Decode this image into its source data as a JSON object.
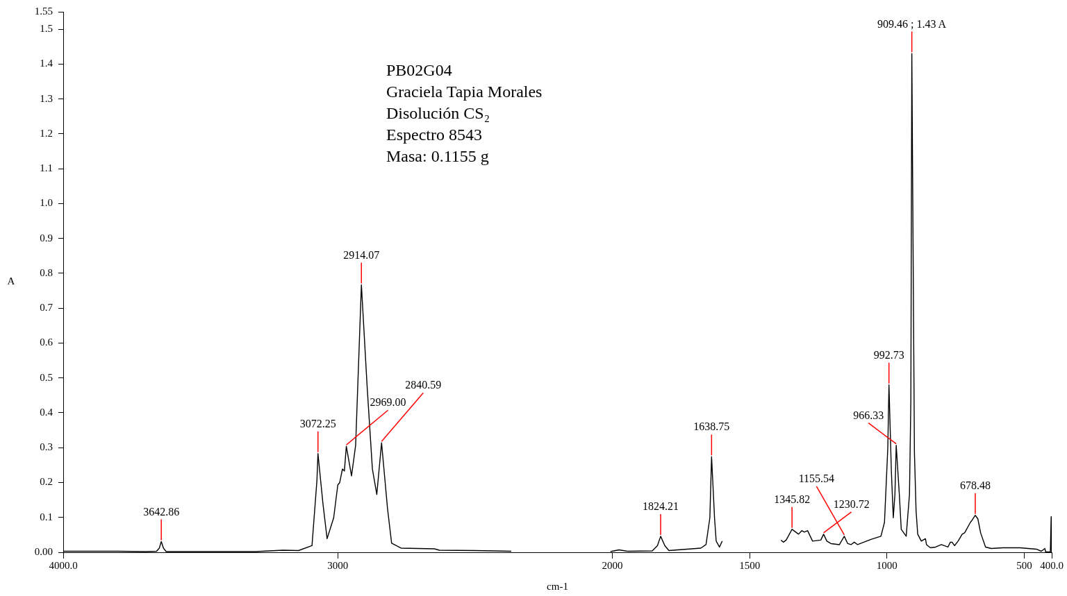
{
  "chart_data": {
    "type": "line",
    "xlabel": "cm-1",
    "ylabel": "A",
    "color": "#000000",
    "marker": "none",
    "grid": false,
    "legend": false,
    "xlim": [
      4000,
      400
    ],
    "xticks": [
      {
        "value": 4000,
        "label": "4000.0"
      },
      3000,
      2000,
      1500,
      1000,
      500,
      {
        "value": 400,
        "label": "400.0"
      }
    ],
    "ylim": [
      0,
      1.55
    ],
    "yticks": [
      {
        "value": 0,
        "label": "0.00"
      },
      0.1,
      0.2,
      0.3,
      0.4,
      0.5,
      0.6,
      0.7,
      0.8,
      0.9,
      {
        "value": 1,
        "label": "1.0"
      },
      1.1,
      1.2,
      1.3,
      1.4,
      1.5,
      1.55
    ],
    "x": [
      4000,
      3800,
      3700,
      3660,
      3650,
      3642.86,
      3635,
      3625,
      3500,
      3300,
      3250,
      3200,
      3143,
      3094,
      3076,
      3072.25,
      3054,
      3039,
      3015,
      3000,
      2993,
      2983,
      2976,
      2969,
      2950,
      2935,
      2914.07,
      2893,
      2874,
      2858,
      2840.59,
      2819,
      2804,
      2770,
      2648,
      2630,
      2500,
      2368,
      2360,
      2007,
      1976,
      1945,
      1855,
      1836,
      1824.21,
      1809,
      1794,
      1745,
      1678,
      1659,
      1645,
      1638.75,
      1628,
      1622,
      1610,
      1600,
      1500,
      1386,
      1377,
      1367,
      1345.82,
      1322,
      1310,
      1301,
      1289,
      1271,
      1241,
      1230.72,
      1219,
      1204,
      1173,
      1155.54,
      1143,
      1131,
      1119,
      1107,
      1058,
      1022,
      1009,
      997,
      992.73,
      984,
      977,
      971,
      966.33,
      955,
      948,
      930,
      918,
      913,
      909.46,
      900,
      894,
      888,
      875,
      860,
      856,
      842,
      823,
      802,
      778,
      769,
      763,
      754,
      741,
      726,
      717,
      696,
      692,
      678.48,
      669,
      659,
      641,
      620,
      577,
      516,
      456,
      438,
      425,
      422,
      405,
      402,
      401
    ],
    "values": [
      0.003,
      0.003,
      0.002,
      0.003,
      0.012,
      0.031,
      0.012,
      0.002,
      0.002,
      0.002,
      0.004,
      0.006,
      0.005,
      0.019,
      0.206,
      0.283,
      0.139,
      0.039,
      0.099,
      0.193,
      0.2,
      0.239,
      0.233,
      0.304,
      0.219,
      0.307,
      0.767,
      0.473,
      0.239,
      0.166,
      0.314,
      0.126,
      0.026,
      0.012,
      0.01,
      0.006,
      0.005,
      0.003,
      null,
      0.002,
      0.007,
      0.003,
      0.004,
      0.019,
      0.046,
      0.019,
      0.005,
      0.008,
      0.012,
      0.022,
      0.099,
      0.274,
      0.099,
      0.032,
      0.015,
      0.032,
      null,
      0.035,
      0.029,
      0.035,
      0.066,
      0.052,
      0.062,
      0.058,
      0.062,
      0.032,
      0.035,
      0.052,
      0.032,
      0.025,
      0.022,
      0.046,
      0.025,
      0.022,
      0.029,
      0.022,
      0.037,
      0.046,
      0.086,
      0.299,
      0.48,
      0.233,
      0.099,
      0.166,
      0.307,
      0.166,
      0.066,
      0.046,
      0.166,
      0.433,
      1.43,
      0.287,
      0.119,
      0.052,
      0.032,
      0.039,
      0.022,
      0.013,
      0.015,
      0.022,
      0.015,
      0.029,
      0.029,
      0.019,
      0.032,
      0.052,
      0.056,
      0.086,
      0.09,
      0.106,
      0.096,
      0.056,
      0.015,
      0.011,
      0.013,
      0.013,
      0.009,
      0.003,
      0.011,
      0.001,
      0.001,
      0.102,
      0.001
    ],
    "annotations": [
      "PB02G04",
      "Graciela Tapia Morales",
      "Disolución CS₂",
      "Espectro 8543",
      "Masa: 0.1155 g",
      {
        "text": "909.46 ; 1.43 A",
        "x": 909.46,
        "y": 1.43
      },
      {
        "text": "2914.07",
        "x": 2914.07,
        "y": 0.767
      },
      {
        "text": "992.73",
        "x": 992.73,
        "y": 0.48
      },
      {
        "text": "3642.86",
        "x": 3642.86,
        "y": 0.031
      },
      {
        "text": "3072.25",
        "x": 3072.25,
        "y": 0.283
      },
      {
        "text": "2969.00",
        "x": 2969,
        "y": 0.304
      },
      {
        "text": "2840.59",
        "x": 2840.59,
        "y": 0.314
      },
      {
        "text": "1824.21",
        "x": 1824.21,
        "y": 0.046
      },
      {
        "text": "1638.75",
        "x": 1638.75,
        "y": 0.274
      },
      {
        "text": "1345.82",
        "x": 1345.82,
        "y": 0.066
      },
      {
        "text": "1230.72",
        "x": 1230.72,
        "y": 0.052
      },
      {
        "text": "1155.54",
        "x": 1155.54,
        "y": 0.046
      },
      {
        "text": "966.33",
        "x": 966.33,
        "y": 0.307
      },
      {
        "text": "678.48",
        "x": 678.48,
        "y": 0.106
      }
    ]
  }
}
